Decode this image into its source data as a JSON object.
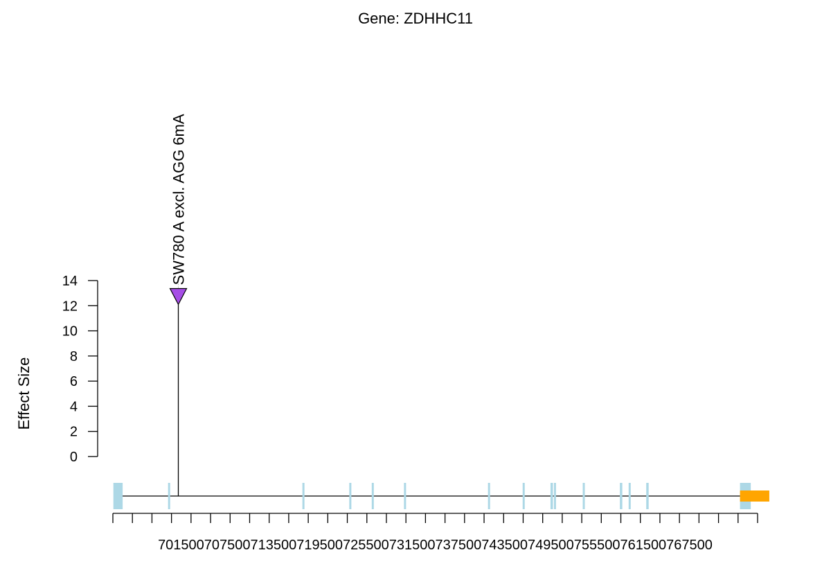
{
  "chart_data": {
    "type": "lollipop",
    "title": "Gene: ZDHHC11",
    "ylabel": "Effect Size",
    "xlabel": "",
    "ylim": [
      0,
      14
    ],
    "y_ticks": [
      0,
      2,
      4,
      6,
      8,
      10,
      12,
      14
    ],
    "xlim": [
      701500,
      767500
    ],
    "x_tick_labels": [
      "701500",
      "707500",
      "713500",
      "719500",
      "725500",
      "731500",
      "737500",
      "743500",
      "749500",
      "755500",
      "761500",
      "767500"
    ],
    "x_minor_step": 2000,
    "sites": [
      {
        "position": 708200,
        "effect": 12.1,
        "label": "SW780 A excl. AGG 6mA",
        "color": "#a64ee6"
      }
    ],
    "gene_model": {
      "line_start": 702200,
      "line_end": 765800,
      "exon_color": "#add8e6",
      "utr_color": "#ffa500",
      "exons": [
        {
          "start": 701550,
          "end": 702500,
          "size": "wide"
        },
        {
          "start": 707150,
          "end": 707300,
          "size": "thin"
        },
        {
          "start": 720900,
          "end": 721050,
          "size": "thin"
        },
        {
          "start": 725700,
          "end": 725850,
          "size": "thin"
        },
        {
          "start": 728000,
          "end": 728150,
          "size": "thin"
        },
        {
          "start": 731300,
          "end": 731450,
          "size": "thin"
        },
        {
          "start": 739900,
          "end": 740050,
          "size": "thin"
        },
        {
          "start": 743450,
          "end": 743600,
          "size": "thin"
        },
        {
          "start": 746300,
          "end": 746550,
          "size": "thin"
        },
        {
          "start": 746650,
          "end": 746850,
          "size": "thin"
        },
        {
          "start": 749600,
          "end": 749750,
          "size": "thin"
        },
        {
          "start": 753400,
          "end": 753650,
          "size": "thin"
        },
        {
          "start": 754300,
          "end": 754450,
          "size": "thin"
        },
        {
          "start": 756100,
          "end": 756350,
          "size": "thin"
        },
        {
          "start": 765700,
          "end": 766800,
          "size": "wide"
        }
      ],
      "utr": {
        "start": 765700,
        "end": 768700
      }
    }
  }
}
